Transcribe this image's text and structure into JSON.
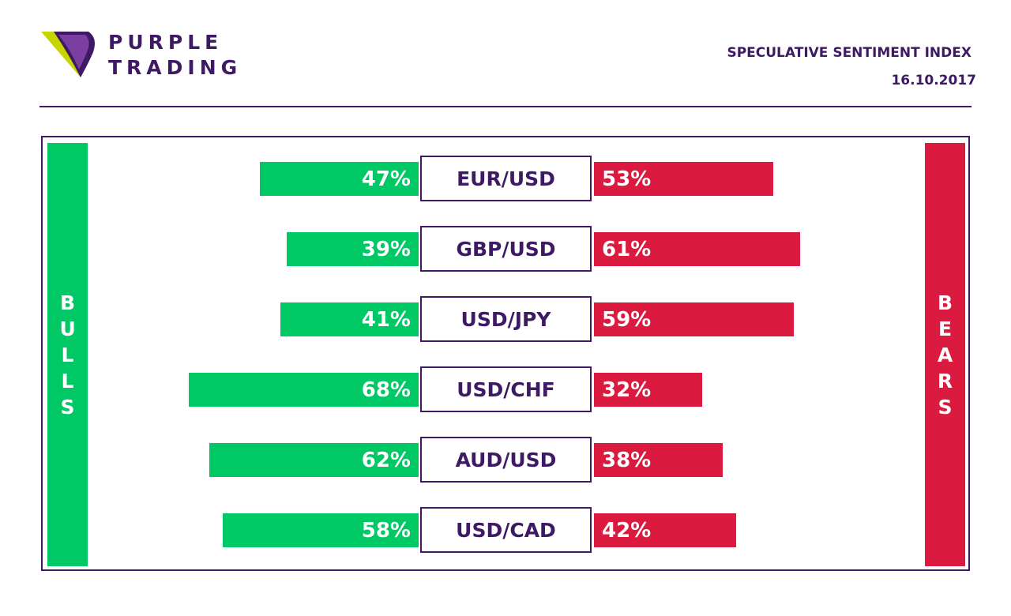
{
  "brand": {
    "line1": "PURPLE",
    "line2": "TRADING"
  },
  "header": {
    "title": "SPECULATIVE SENTIMENT INDEX",
    "date": "16.10.2017"
  },
  "colors": {
    "bull": "#00c865",
    "bear": "#db1a3f",
    "brand": "#3d1a63",
    "logo_accent": "#c8d400"
  },
  "labels": {
    "bulls": "BULLS",
    "bears": "BEARS"
  },
  "chart_data": {
    "type": "bar",
    "categories": [
      "EUR/USD",
      "GBP/USD",
      "USD/JPY",
      "USD/CHF",
      "AUD/USD",
      "USD/CAD"
    ],
    "series": [
      {
        "name": "BULLS",
        "values": [
          47,
          39,
          41,
          68,
          62,
          58
        ],
        "labels": [
          "47%",
          "39%",
          "41%",
          "68%",
          "62%",
          "58%"
        ]
      },
      {
        "name": "BEARS",
        "values": [
          53,
          61,
          59,
          32,
          38,
          42
        ],
        "labels": [
          "53%",
          "61%",
          "59%",
          "32%",
          "38%",
          "42%"
        ]
      }
    ]
  }
}
